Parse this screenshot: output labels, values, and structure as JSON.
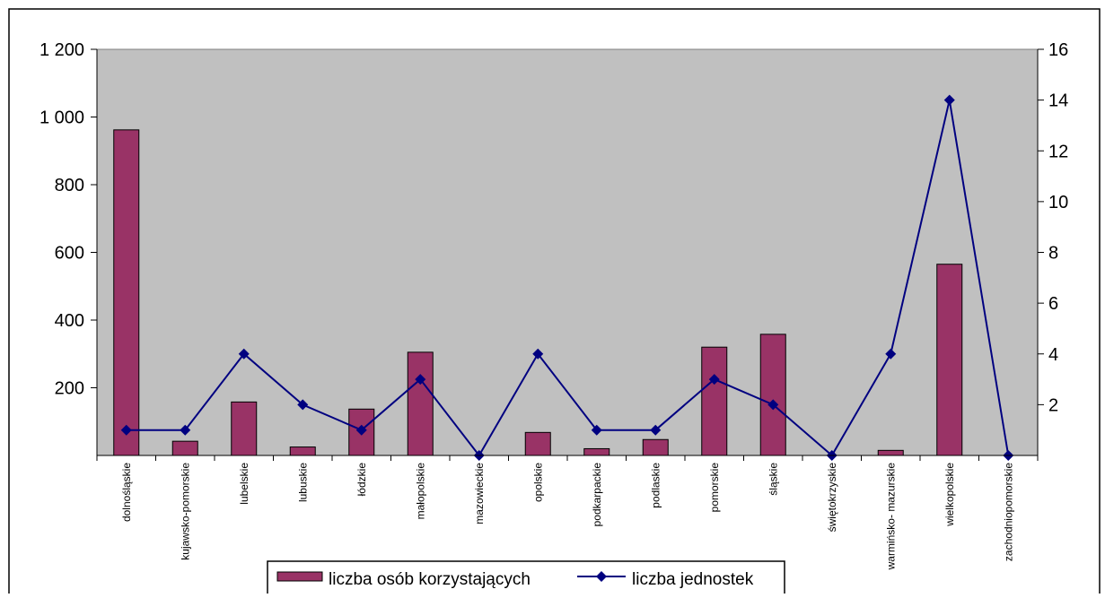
{
  "chart_data": {
    "type": "bar",
    "title": "",
    "xlabel": "",
    "ylabel": "",
    "categories": [
      "dolnośląskie",
      "kujawsko-pomorskie",
      "lubelskie",
      "lubuskie",
      "łódzkie",
      "małopolskie",
      "mazowieckie",
      "opolskie",
      "podkarpackie",
      "podlaskie",
      "pomorskie",
      "śląskie",
      "świętokrzyskie",
      "warmińsko- mazurskie",
      "wielkopolskie",
      "zachodniopomorskie"
    ],
    "series": [
      {
        "name": "liczba osób korzystających",
        "type": "bar",
        "axis": "left",
        "color": "#993366",
        "values": [
          962,
          42,
          158,
          25,
          137,
          305,
          0,
          68,
          20,
          47,
          320,
          358,
          0,
          15,
          565,
          0
        ]
      },
      {
        "name": "liczba jednostek",
        "type": "line",
        "axis": "right",
        "color": "#000080",
        "values": [
          1,
          1,
          4,
          2,
          1,
          3,
          0,
          4,
          1,
          1,
          3,
          2,
          0,
          4,
          14,
          0
        ]
      }
    ],
    "y_left": {
      "min": 0,
      "max": 1200,
      "ticks": [
        200,
        400,
        600,
        800,
        1000,
        1200
      ],
      "tick_labels": [
        "200",
        "400",
        "600",
        "800",
        "1 000",
        "1 200"
      ]
    },
    "y_right": {
      "min": 0,
      "max": 16,
      "ticks": [
        2,
        4,
        6,
        8,
        10,
        12,
        14,
        16
      ],
      "tick_labels": [
        "2",
        "4",
        "6",
        "8",
        "10",
        "12",
        "14",
        "16"
      ]
    },
    "plot_background": "#c0c0c0",
    "grid": false,
    "legend_position": "bottom"
  }
}
